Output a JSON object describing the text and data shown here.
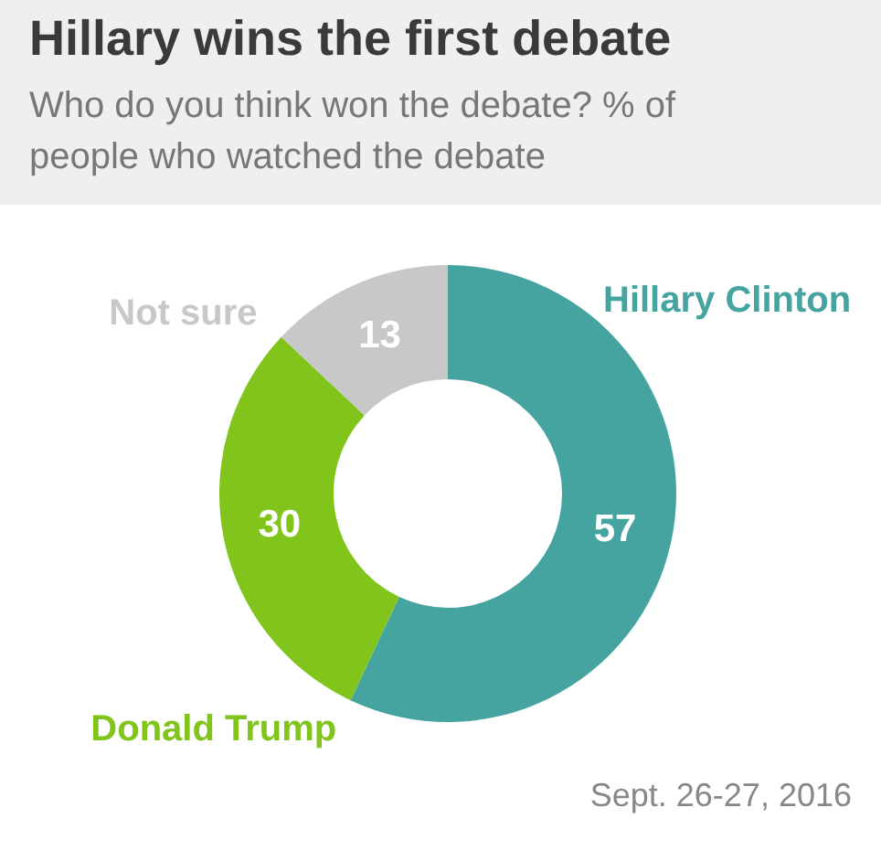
{
  "chart_data": {
    "type": "donut",
    "title": "Hillary wins the first debate",
    "subtitle": "Who do you think won the debate? % of people who watched the debate",
    "categories": [
      "Hillary Clinton",
      "Donald Trump",
      "Not sure"
    ],
    "values": [
      57,
      30,
      13
    ],
    "colors": [
      "#45a3a0",
      "#80c41c",
      "#c8c8c8"
    ],
    "data_labels": true,
    "annotations": [
      "Sept. 26-27, 2016"
    ]
  }
}
